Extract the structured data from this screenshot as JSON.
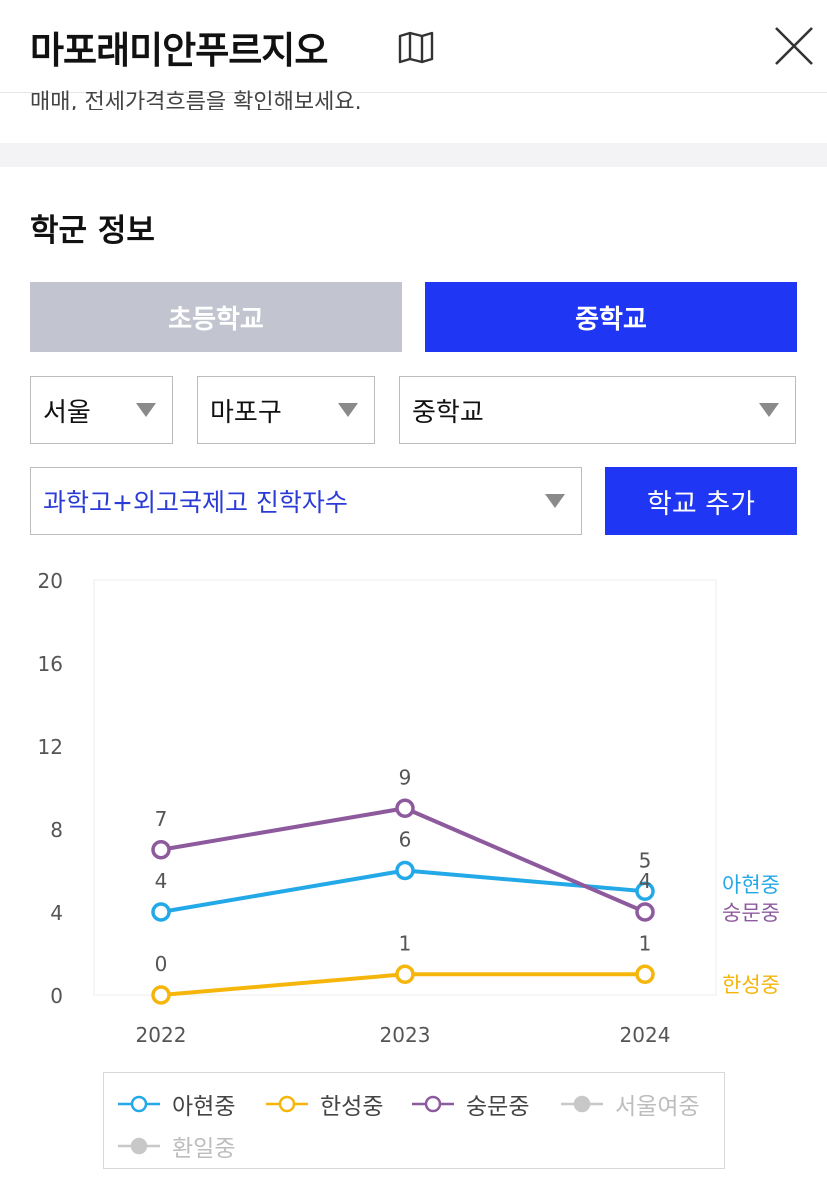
{
  "header": {
    "title": "마포래미안푸르지오",
    "subtext": "매매, 전세가격흐름을 확인해보세요."
  },
  "section": {
    "title": "학군 정보"
  },
  "tabs": [
    {
      "label": "초등학교",
      "active": false
    },
    {
      "label": "중학교",
      "active": true
    }
  ],
  "filters": {
    "region": "서울",
    "district": "마포구",
    "school_type": "중학교",
    "metric": "과학고+외고국제고 진학자수",
    "add_button": "학교 추가"
  },
  "colors": {
    "accent": "#1f36f5",
    "inactive_tab": "#c2c5cf",
    "series_ahyeon": "#23a8e8",
    "series_hanseong": "#f5b50a",
    "series_sungmun": "#8e5a9e",
    "series_disabled": "#c8c8c8"
  },
  "icons": {
    "title_icon": "map-icon",
    "close": "close-icon"
  },
  "chart_data": {
    "type": "line",
    "x": [
      "2022",
      "2023",
      "2024"
    ],
    "ylim": [
      0,
      20
    ],
    "yticks": [
      "0",
      "4",
      "8",
      "12",
      "16",
      "20"
    ],
    "grid": false,
    "legend_placement": "bottom",
    "series": [
      {
        "name": "아현중",
        "color": "#23a8e8",
        "values": [
          4,
          6,
          5
        ],
        "visible": true
      },
      {
        "name": "한성중",
        "color": "#f5b50a",
        "values": [
          0,
          1,
          1
        ],
        "visible": true
      },
      {
        "name": "숭문중",
        "color": "#8e5a9e",
        "values": [
          7,
          9,
          4
        ],
        "visible": true
      },
      {
        "name": "서울여중",
        "color": "#c8c8c8",
        "visible": false
      },
      {
        "name": "환일중",
        "color": "#c8c8c8",
        "visible": false
      }
    ]
  }
}
